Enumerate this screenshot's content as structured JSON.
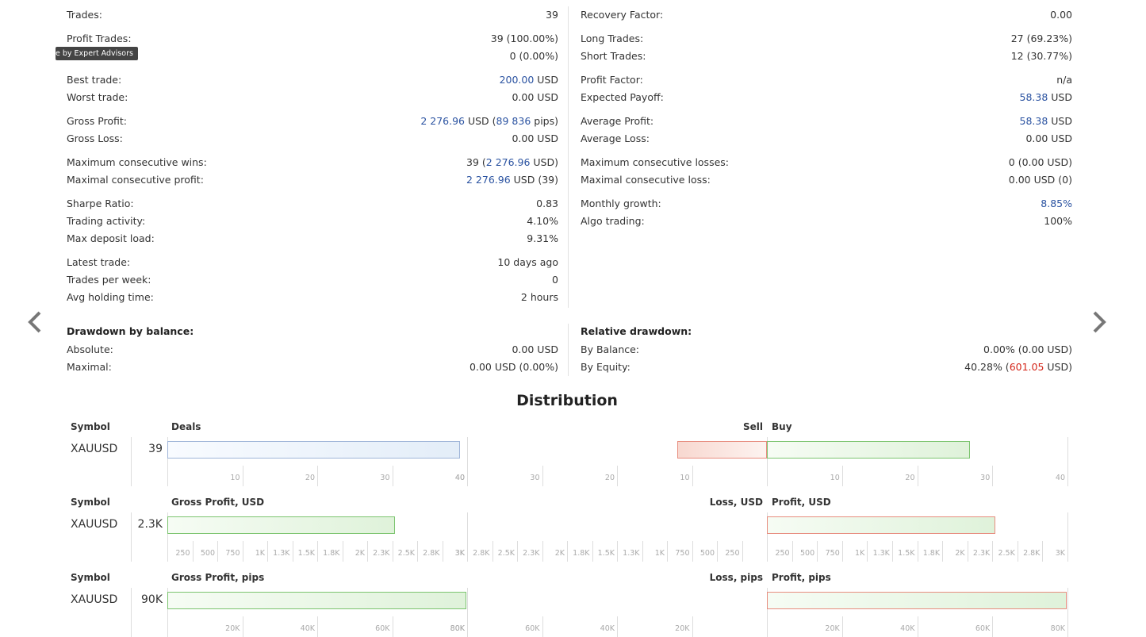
{
  "tooltip": "e by Expert Advisors",
  "left_stats": [
    {
      "label": "Trades:",
      "value": [
        {
          "t": "39"
        }
      ]
    },
    {
      "label": "Profit Trades:",
      "value": [
        {
          "t": "39 (100.00%)"
        }
      ]
    },
    {
      "label": "",
      "value": [
        {
          "t": "0 (0.00%)"
        }
      ]
    },
    {
      "label": "Best trade:",
      "value": [
        {
          "t": "200.00",
          "c": "blue"
        },
        {
          "t": " USD"
        }
      ]
    },
    {
      "label": "Worst trade:",
      "value": [
        {
          "t": "0.00 USD"
        }
      ]
    },
    {
      "label": "Gross Profit:",
      "value": [
        {
          "t": "2 276.96",
          "c": "blue"
        },
        {
          "t": " USD ("
        },
        {
          "t": "89 836",
          "c": "blue"
        },
        {
          "t": " pips)"
        }
      ]
    },
    {
      "label": "Gross Loss:",
      "value": [
        {
          "t": "0.00 USD"
        }
      ]
    },
    {
      "label": "Maximum consecutive wins:",
      "value": [
        {
          "t": "39 ("
        },
        {
          "t": "2 276.96",
          "c": "blue"
        },
        {
          "t": " USD)"
        }
      ]
    },
    {
      "label": "Maximal consecutive profit:",
      "value": [
        {
          "t": "2 276.96",
          "c": "blue"
        },
        {
          "t": " USD (39)"
        }
      ]
    },
    {
      "label": "Sharpe Ratio:",
      "value": [
        {
          "t": "0.83"
        }
      ]
    },
    {
      "label": "Trading activity:",
      "value": [
        {
          "t": "4.10%"
        }
      ]
    },
    {
      "label": "Max deposit load:",
      "value": [
        {
          "t": "9.31%"
        }
      ]
    },
    {
      "label": "Latest trade:",
      "value": [
        {
          "t": "10 days ago"
        }
      ]
    },
    {
      "label": "Trades per week:",
      "value": [
        {
          "t": "0"
        }
      ]
    },
    {
      "label": "Avg holding time:",
      "value": [
        {
          "t": "2 hours"
        }
      ]
    },
    {
      "label": "Drawdown by balance:",
      "head": true,
      "value": []
    },
    {
      "label": "Absolute:",
      "value": [
        {
          "t": "0.00 USD"
        }
      ]
    },
    {
      "label": "Maximal:",
      "value": [
        {
          "t": "0.00 USD (0.00%)"
        }
      ]
    }
  ],
  "right_stats": [
    {
      "label": "Recovery Factor:",
      "value": [
        {
          "t": "0.00"
        }
      ]
    },
    {
      "label": "Long Trades:",
      "value": [
        {
          "t": "27 (69.23%)"
        }
      ]
    },
    {
      "label": "Short Trades:",
      "value": [
        {
          "t": "12 (30.77%)"
        }
      ]
    },
    {
      "label": "Profit Factor:",
      "value": [
        {
          "t": "n/a"
        }
      ]
    },
    {
      "label": "Expected Payoff:",
      "value": [
        {
          "t": "58.38",
          "c": "blue"
        },
        {
          "t": " USD"
        }
      ]
    },
    {
      "label": "Average Profit:",
      "value": [
        {
          "t": "58.38",
          "c": "blue"
        },
        {
          "t": " USD"
        }
      ]
    },
    {
      "label": "Average Loss:",
      "value": [
        {
          "t": "0.00 USD"
        }
      ]
    },
    {
      "label": "Maximum consecutive losses:",
      "value": [
        {
          "t": "0 (0.00 USD)"
        }
      ]
    },
    {
      "label": "Maximal consecutive loss:",
      "value": [
        {
          "t": "0.00 USD (0)"
        }
      ]
    },
    {
      "label": "Monthly growth:",
      "value": [
        {
          "t": "8.85%",
          "c": "blue"
        }
      ]
    },
    {
      "label": "Algo trading:",
      "value": [
        {
          "t": "100%"
        }
      ]
    },
    {
      "label": "Relative drawdown:",
      "head": true,
      "value": []
    },
    {
      "label": "By Balance:",
      "value": [
        {
          "t": "0.00% (0.00 USD)"
        }
      ]
    },
    {
      "label": "By Equity:",
      "value": [
        {
          "t": "40.28% ("
        },
        {
          "t": "601.05",
          "c": "red"
        },
        {
          "t": " USD)"
        }
      ]
    }
  ],
  "distribution_title": "Distribution",
  "chart_data": [
    {
      "type": "bar",
      "symbol_header": "Symbol",
      "symbol": "XAUUSD",
      "total_label": "39",
      "left_title": "Deals",
      "right_title_left": "Sell",
      "right_title_right": "Buy",
      "left_value": 39,
      "left_max": 40,
      "left_ticks": [
        "10",
        "20",
        "30",
        "40"
      ],
      "right_neg_value": 12,
      "right_pos_value": 27,
      "right_max": 40,
      "right_neg_ticks": [
        "40",
        "30",
        "20",
        "10"
      ],
      "right_pos_ticks": [
        "10",
        "20",
        "30",
        "40"
      ],
      "colors": {
        "left": "#9fb5d8",
        "neg": "#e78d7f",
        "pos": "#7cc46f"
      }
    },
    {
      "type": "bar",
      "symbol_header": "Symbol",
      "symbol": "XAUUSD",
      "total_label": "2.3K",
      "left_title": "Gross Profit, USD",
      "right_title_left": "Loss, USD",
      "right_title_right": "Profit, USD",
      "left_value": 2276.96,
      "left_max": 3000,
      "left_ticks": [
        "250",
        "500",
        "750",
        "1K",
        "1.3K",
        "1.5K",
        "1.8K",
        "2K",
        "2.3K",
        "2.5K",
        "2.8K",
        "3K"
      ],
      "right_neg_value": 0,
      "right_pos_value": 2276.96,
      "right_max": 3000,
      "right_neg_ticks": [
        "3K",
        "2.8K",
        "2.5K",
        "2.3K",
        "2K",
        "1.8K",
        "1.5K",
        "1.3K",
        "1K",
        "750",
        "500",
        "250"
      ],
      "right_pos_ticks": [
        "250",
        "500",
        "750",
        "1K",
        "1.3K",
        "1.5K",
        "1.8K",
        "2K",
        "2.3K",
        "2.5K",
        "2.8K",
        "3K"
      ],
      "colors": {
        "left": "#7cc46f",
        "neg": "#e78d7f",
        "pos": "#e78d7f"
      }
    },
    {
      "type": "bar",
      "symbol_header": "Symbol",
      "symbol": "XAUUSD",
      "total_label": "90K",
      "left_title": "Gross Profit, pips",
      "right_title_left": "Loss, pips",
      "right_title_right": "Profit, pips",
      "left_value": 89836,
      "left_max": 90000,
      "left_ticks": [
        "20K",
        "40K",
        "60K",
        "80K"
      ],
      "right_neg_value": 0,
      "right_pos_value": 89836,
      "right_max": 90000,
      "right_neg_ticks": [
        "80K",
        "60K",
        "40K",
        "20K"
      ],
      "right_pos_ticks": [
        "20K",
        "40K",
        "60K",
        "80K"
      ],
      "colors": {
        "left": "#7cc46f",
        "neg": "#e78d7f",
        "pos": "#e78d7f"
      }
    }
  ]
}
